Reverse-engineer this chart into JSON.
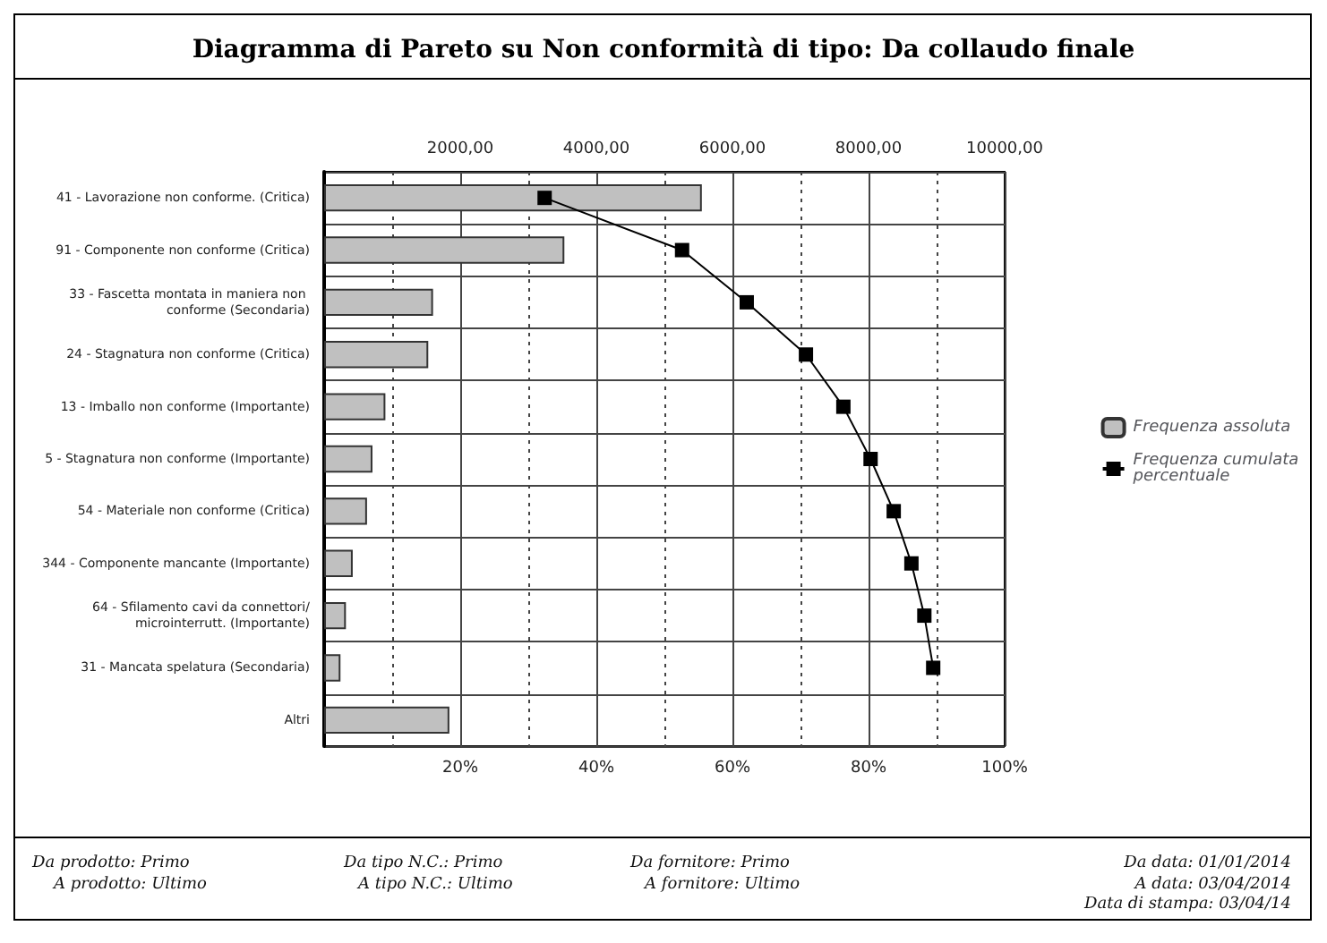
{
  "chart_data": {
    "type": "bar",
    "orientation": "horizontal",
    "title": "Diagramma di Pareto su Non conformità di tipo: Da collaudo finale",
    "categories": [
      "41 - Lavorazione non conforme. (Critica)",
      "91 - Componente non conforme (Critica)",
      "33 - Fascetta montata in maniera non conforme (Secondaria)",
      "24 - Stagnatura non conforme (Critica)",
      "13 - Imballo non conforme (Importante)",
      "5 - Stagnatura non conforme (Importante)",
      "54 - Materiale non conforme (Critica)",
      "344 - Componente mancante (Importante)",
      "64 - Sfilamento cavi da connettori/microinterrutt. (Importante)",
      "31 - Mancata spelatura (Secondaria)",
      "Altri"
    ],
    "series": [
      {
        "name": "Frequenza assoluta",
        "axis": "x2",
        "color": "#c0c0c0",
        "values": [
          5550,
          3530,
          1600,
          1530,
          900,
          710,
          630,
          420,
          320,
          240,
          1840
        ]
      },
      {
        "name": "Frequenza cumulata percentuale",
        "type": "line",
        "color": "#000000",
        "marker": "square",
        "line_style": "solid",
        "values": [
          32.4,
          52.6,
          62.1,
          70.8,
          76.3,
          80.3,
          83.7,
          86.3,
          88.2,
          89.5,
          null
        ]
      }
    ],
    "xlim": [
      0,
      100
    ],
    "xticks": [
      {
        "value": 20,
        "label": "20%"
      },
      {
        "value": 40,
        "label": "40%"
      },
      {
        "value": 60,
        "label": "60%"
      },
      {
        "value": 80,
        "label": "80%"
      },
      {
        "value": 100,
        "label": "100%"
      }
    ],
    "x2lim": [
      0,
      10000
    ],
    "x2ticks": [
      {
        "value": 2000,
        "label": "2000,00"
      },
      {
        "value": 4000,
        "label": "4000,00"
      },
      {
        "value": 6000,
        "label": "6000,00"
      },
      {
        "value": 8000,
        "label": "8000,00"
      },
      {
        "value": 10000,
        "label": "10000,00"
      }
    ],
    "grid": true,
    "legend": "right",
    "annotations": [
      "Da prodotto: Primo",
      "A prodotto: Ultimo",
      "Da tipo N.C.: Primo",
      "A tipo N.C.: Ultimo",
      "Da fornitore: Primo",
      "A fornitore: Ultimo",
      "Da data: 01/01/2014",
      "A data: 03/04/2014",
      "Data di stampa: 03/04/14"
    ]
  }
}
